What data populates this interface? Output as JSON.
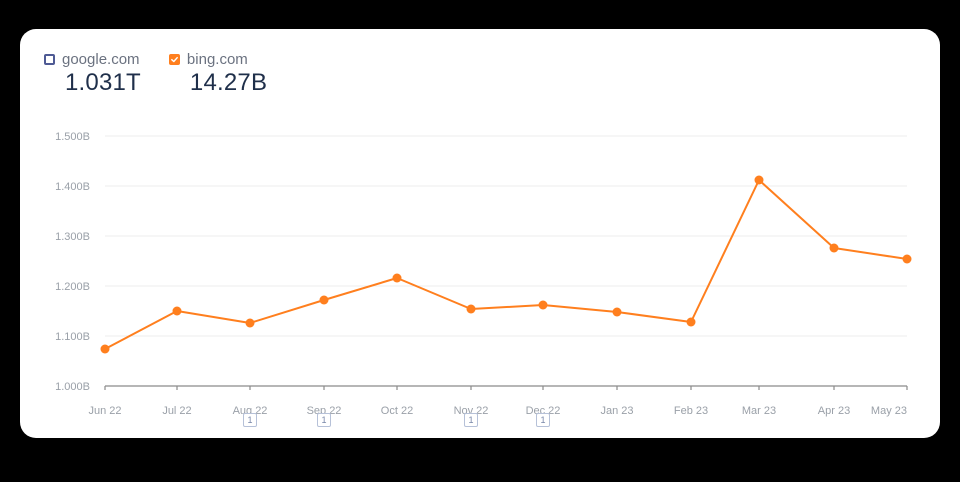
{
  "legend": [
    {
      "label": "google.com",
      "value": "1.031T",
      "checked": false,
      "color": "#4e5a94"
    },
    {
      "label": "bing.com",
      "value": "14.27B",
      "checked": true,
      "color": "#ff7f1e"
    }
  ],
  "annotations": [
    {
      "month": "Aug 22",
      "count": "1"
    },
    {
      "month": "Sep 22",
      "count": "1"
    },
    {
      "month": "Nov 22",
      "count": "1"
    },
    {
      "month": "Dec 22",
      "count": "1"
    }
  ],
  "chart_data": {
    "type": "line",
    "title": "",
    "xlabel": "",
    "ylabel": "",
    "categories": [
      "Jun 22",
      "Jul 22",
      "Aug 22",
      "Sep 22",
      "Oct 22",
      "Nov 22",
      "Dec 22",
      "Jan 23",
      "Feb 23",
      "Mar 23",
      "Apr 23",
      "May 23"
    ],
    "series": [
      {
        "name": "bing.com",
        "color": "#ff7f1e",
        "values": [
          1.074,
          1.15,
          1.126,
          1.172,
          1.216,
          1.154,
          1.162,
          1.148,
          1.128,
          1.412,
          1.276,
          1.254
        ]
      }
    ],
    "yticks": [
      "1.000B",
      "1.100B",
      "1.200B",
      "1.300B",
      "1.400B",
      "1.500B"
    ],
    "ylim": [
      1.0,
      1.5
    ],
    "units": "B",
    "grid": true,
    "legend_position": "top-left"
  }
}
